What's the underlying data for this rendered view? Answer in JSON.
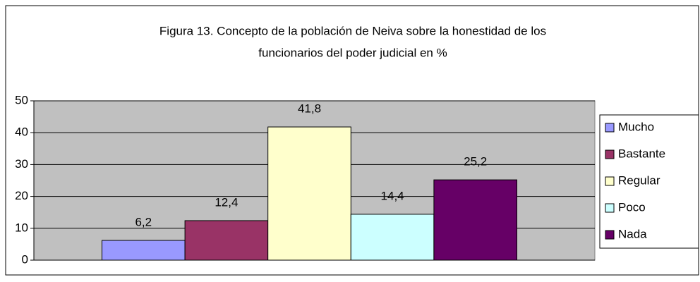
{
  "chart_data": {
    "type": "bar",
    "title": [
      "Figura 13. Concepto de la población de Neiva sobre la honestidad de los",
      "funcionarios del poder judicial en %"
    ],
    "series": [
      {
        "name": "Mucho",
        "color": "#9999ff",
        "values": [
          6.2
        ],
        "value_labels": [
          "6,2"
        ]
      },
      {
        "name": "Bastante",
        "color": "#993366",
        "values": [
          12.4
        ],
        "value_labels": [
          "12,4"
        ]
      },
      {
        "name": "Regular",
        "color": "#ffffcc",
        "values": [
          41.8
        ],
        "value_labels": [
          "41,8"
        ]
      },
      {
        "name": "Poco",
        "color": "#ccffff",
        "values": [
          14.4
        ],
        "value_labels": [
          "14,4"
        ]
      },
      {
        "name": "Nada",
        "color": "#660066",
        "values": [
          25.2
        ],
        "value_labels": [
          "25,2"
        ]
      }
    ],
    "ylim": [
      0,
      50
    ],
    "yticks": [
      0,
      10,
      20,
      30,
      40,
      50
    ],
    "grid": true,
    "legend": "right"
  }
}
